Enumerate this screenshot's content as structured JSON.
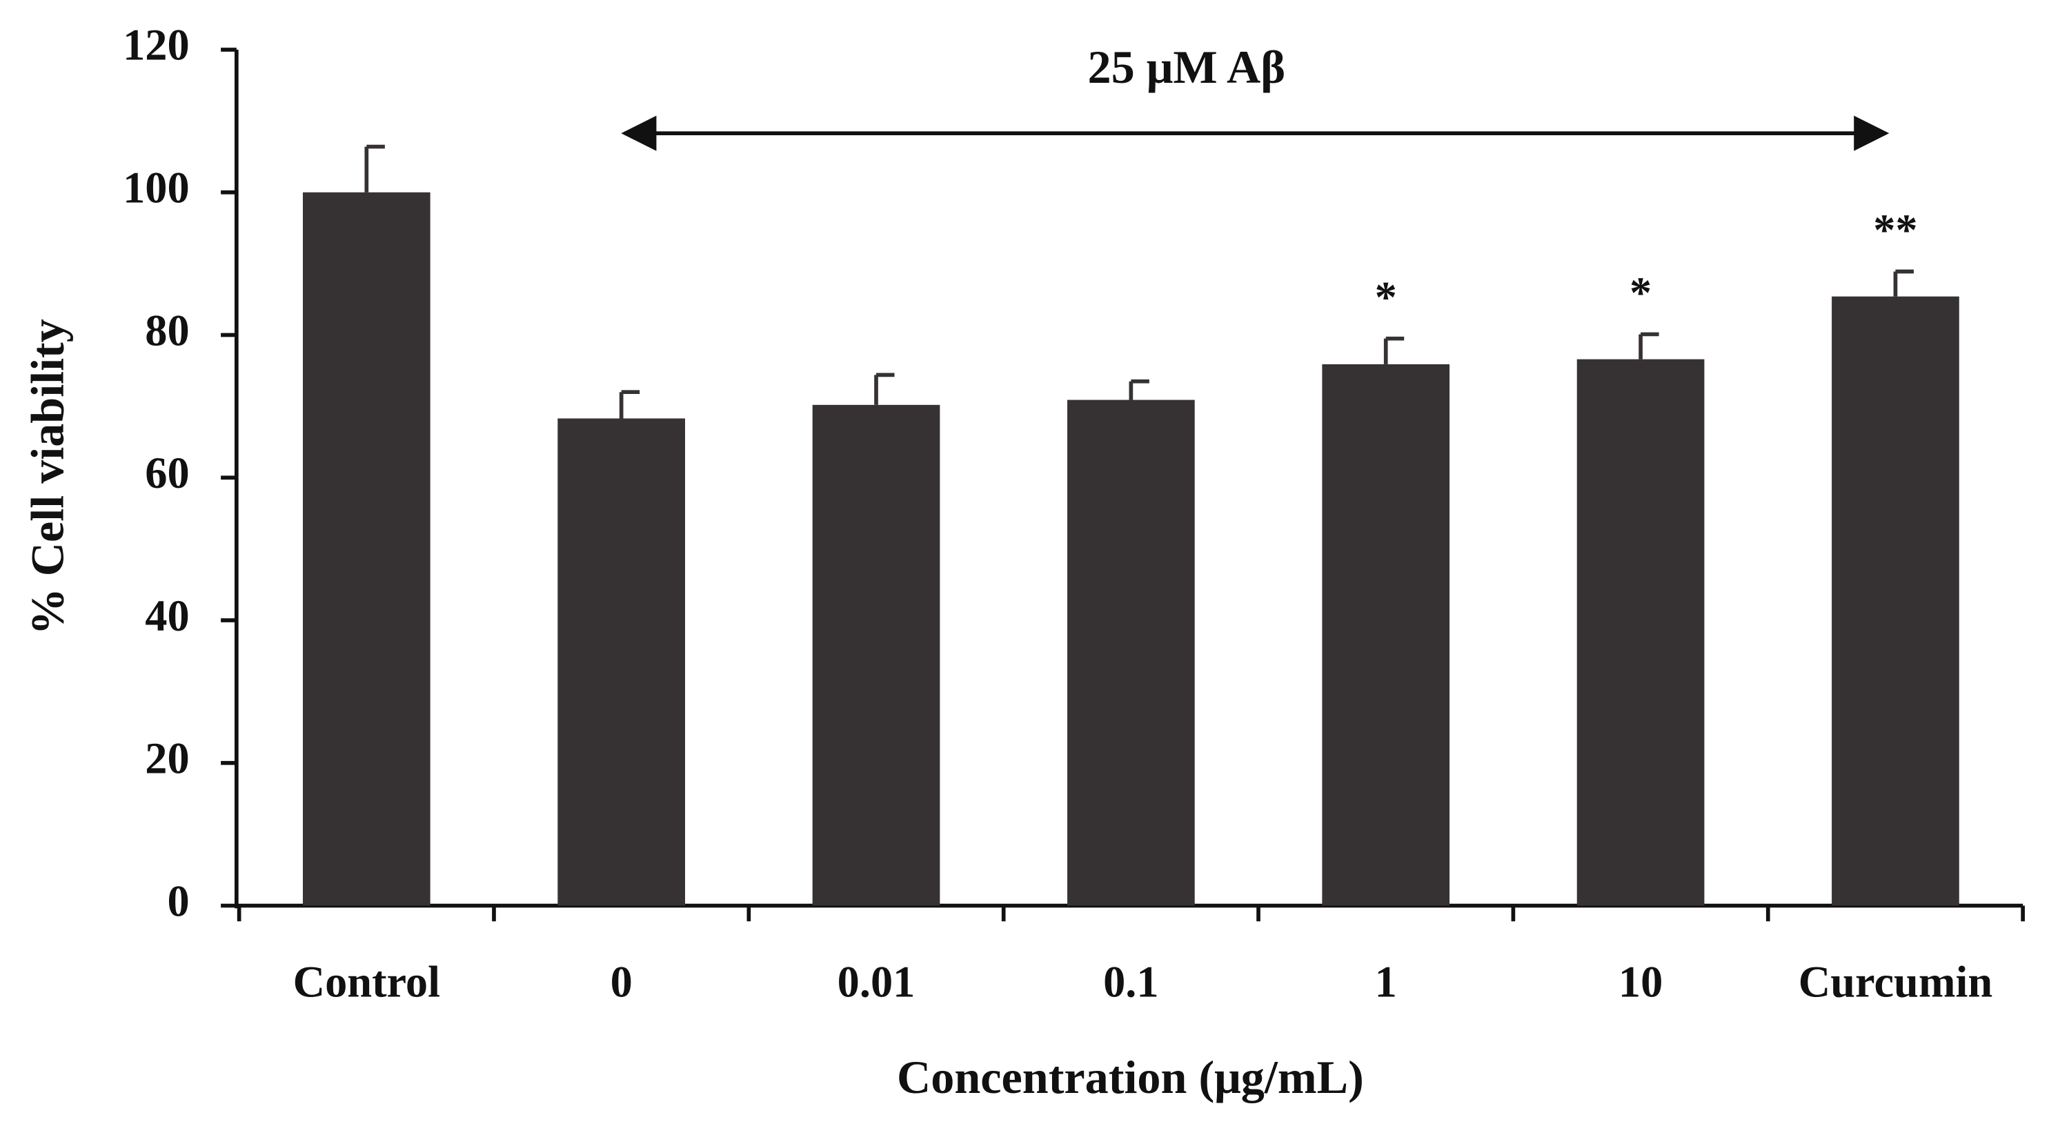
{
  "chart_data": {
    "type": "bar",
    "annotation": "25 μM Aβ",
    "x_label": "Concentration (μg/mL)",
    "y_label": "% Cell viability",
    "categories": [
      "Control",
      "0",
      "0.01",
      "0.1",
      "1",
      "10",
      "Curcumin"
    ],
    "values": [
      100,
      68.3,
      70.2,
      70.9,
      75.9,
      76.6,
      85.4
    ],
    "errors": [
      6.4,
      3.7,
      4.2,
      2.6,
      3.6,
      3.5,
      3.5
    ],
    "significance": [
      null,
      null,
      null,
      null,
      "*",
      "*",
      "**"
    ],
    "color": "#363234",
    "ylim": [
      0,
      120
    ],
    "yticks": [
      0,
      20,
      40,
      60,
      80,
      100,
      120
    ]
  }
}
